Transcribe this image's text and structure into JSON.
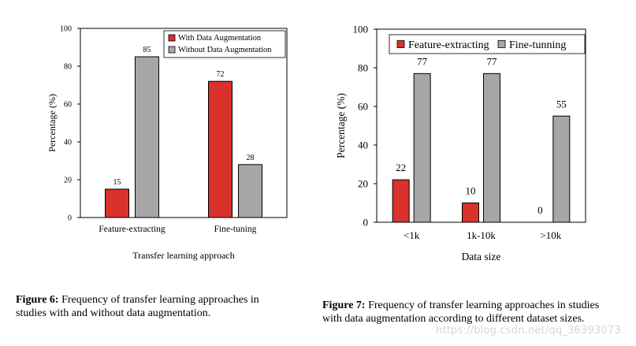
{
  "chart_data": [
    {
      "type": "bar",
      "title": "",
      "xlabel": "Transfer learning approach",
      "ylabel": "Percentage (%)",
      "ylim": [
        0,
        100
      ],
      "yticks": [
        0,
        20,
        40,
        60,
        80,
        100
      ],
      "grid": false,
      "legend_position": "top-right",
      "categories": [
        "Feature-extracting",
        "Fine-tuning"
      ],
      "series": [
        {
          "name": "With Data Augmentation",
          "values": [
            15,
            72
          ],
          "color": "#d9312b"
        },
        {
          "name": "Without Data Augmentation",
          "values": [
            85,
            28
          ],
          "color": "#a6a6a6"
        }
      ]
    },
    {
      "type": "bar",
      "title": "",
      "xlabel": "Data size",
      "ylabel": "Percentage (%)",
      "ylim": [
        0,
        100
      ],
      "yticks": [
        0,
        20,
        40,
        60,
        80,
        100
      ],
      "grid": false,
      "legend_position": "top",
      "categories": [
        "<1k",
        "1k-10k",
        ">10k"
      ],
      "series": [
        {
          "name": "Feature-extracting",
          "values": [
            22,
            10,
            0
          ],
          "color": "#d9312b"
        },
        {
          "name": "Fine-tunning",
          "values": [
            77,
            77,
            55
          ],
          "color": "#a6a6a6"
        }
      ]
    }
  ],
  "captions": [
    {
      "label": "Figure 6:",
      "text": "Frequency of transfer learning approaches in studies with and without data augmentation."
    },
    {
      "label": "Figure 7:",
      "text": "Frequency of transfer learning approaches in studies with data augmentation according to different dataset sizes."
    }
  ],
  "watermark": "https://blog.csdn.net/qq_36393073"
}
